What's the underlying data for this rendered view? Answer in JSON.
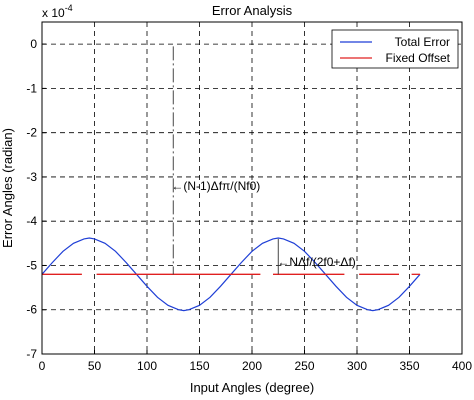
{
  "chart_data": {
    "type": "line",
    "title": "Error Analysis",
    "xlabel": "Input Angles (degree)",
    "ylabel": "Error Angles (radian)",
    "y_multiplier_label": "x 10",
    "y_multiplier_exp": "-4",
    "xlim": [
      0,
      400
    ],
    "ylim": [
      -7,
      0.5
    ],
    "xticks": [
      0,
      50,
      100,
      150,
      200,
      250,
      300,
      350,
      400
    ],
    "yticks": [
      0,
      -1,
      -2,
      -3,
      -4,
      -5,
      -6,
      -7
    ],
    "xtick_labels": [
      "0",
      "50",
      "100",
      "150",
      "200",
      "250",
      "300",
      "350",
      "400"
    ],
    "ytick_labels": [
      "0",
      "-1",
      "-2",
      "-3",
      "-4",
      "-5",
      "-6",
      "-7"
    ],
    "grid": true,
    "legend_position": "top-right",
    "series": [
      {
        "name": "Total Error",
        "color": "#1f3fd6",
        "x": [
          0,
          10,
          20,
          30,
          40,
          45,
          50,
          60,
          70,
          80,
          90,
          100,
          110,
          120,
          130,
          135,
          140,
          150,
          160,
          170,
          180,
          190,
          200,
          210,
          220,
          225,
          230,
          240,
          250,
          260,
          270,
          280,
          290,
          300,
          310,
          315,
          320,
          330,
          340,
          350,
          360
        ],
        "y": [
          -5.2,
          -4.93,
          -4.68,
          -4.5,
          -4.4,
          -4.38,
          -4.4,
          -4.5,
          -4.68,
          -4.93,
          -5.2,
          -5.47,
          -5.72,
          -5.9,
          -6.0,
          -6.02,
          -6.0,
          -5.9,
          -5.72,
          -5.47,
          -5.2,
          -4.93,
          -4.68,
          -4.5,
          -4.4,
          -4.38,
          -4.4,
          -4.5,
          -4.68,
          -4.93,
          -5.2,
          -5.47,
          -5.72,
          -5.9,
          -6.0,
          -6.02,
          -6.0,
          -5.9,
          -5.72,
          -5.47,
          -5.2
        ]
      },
      {
        "name": "Fixed Offset",
        "color": "#e02020",
        "segments": [
          [
            0,
            38
          ],
          [
            52,
            208
          ],
          [
            220,
            288
          ],
          [
            302,
            340
          ],
          [
            352,
            360
          ]
        ],
        "y": -5.2
      }
    ],
    "annotations": [
      {
        "text": "(N-1)Δfπ/(Nf0)",
        "x": 127,
        "y": -3.2,
        "line_x": 125,
        "line_y": [
          -0.05,
          -5.2
        ]
      },
      {
        "text": "NΔf/(2f0+Δf)",
        "x": 228,
        "y": -4.92,
        "line_x": 225,
        "line_y": [
          -4.4,
          -5.2
        ]
      }
    ]
  }
}
